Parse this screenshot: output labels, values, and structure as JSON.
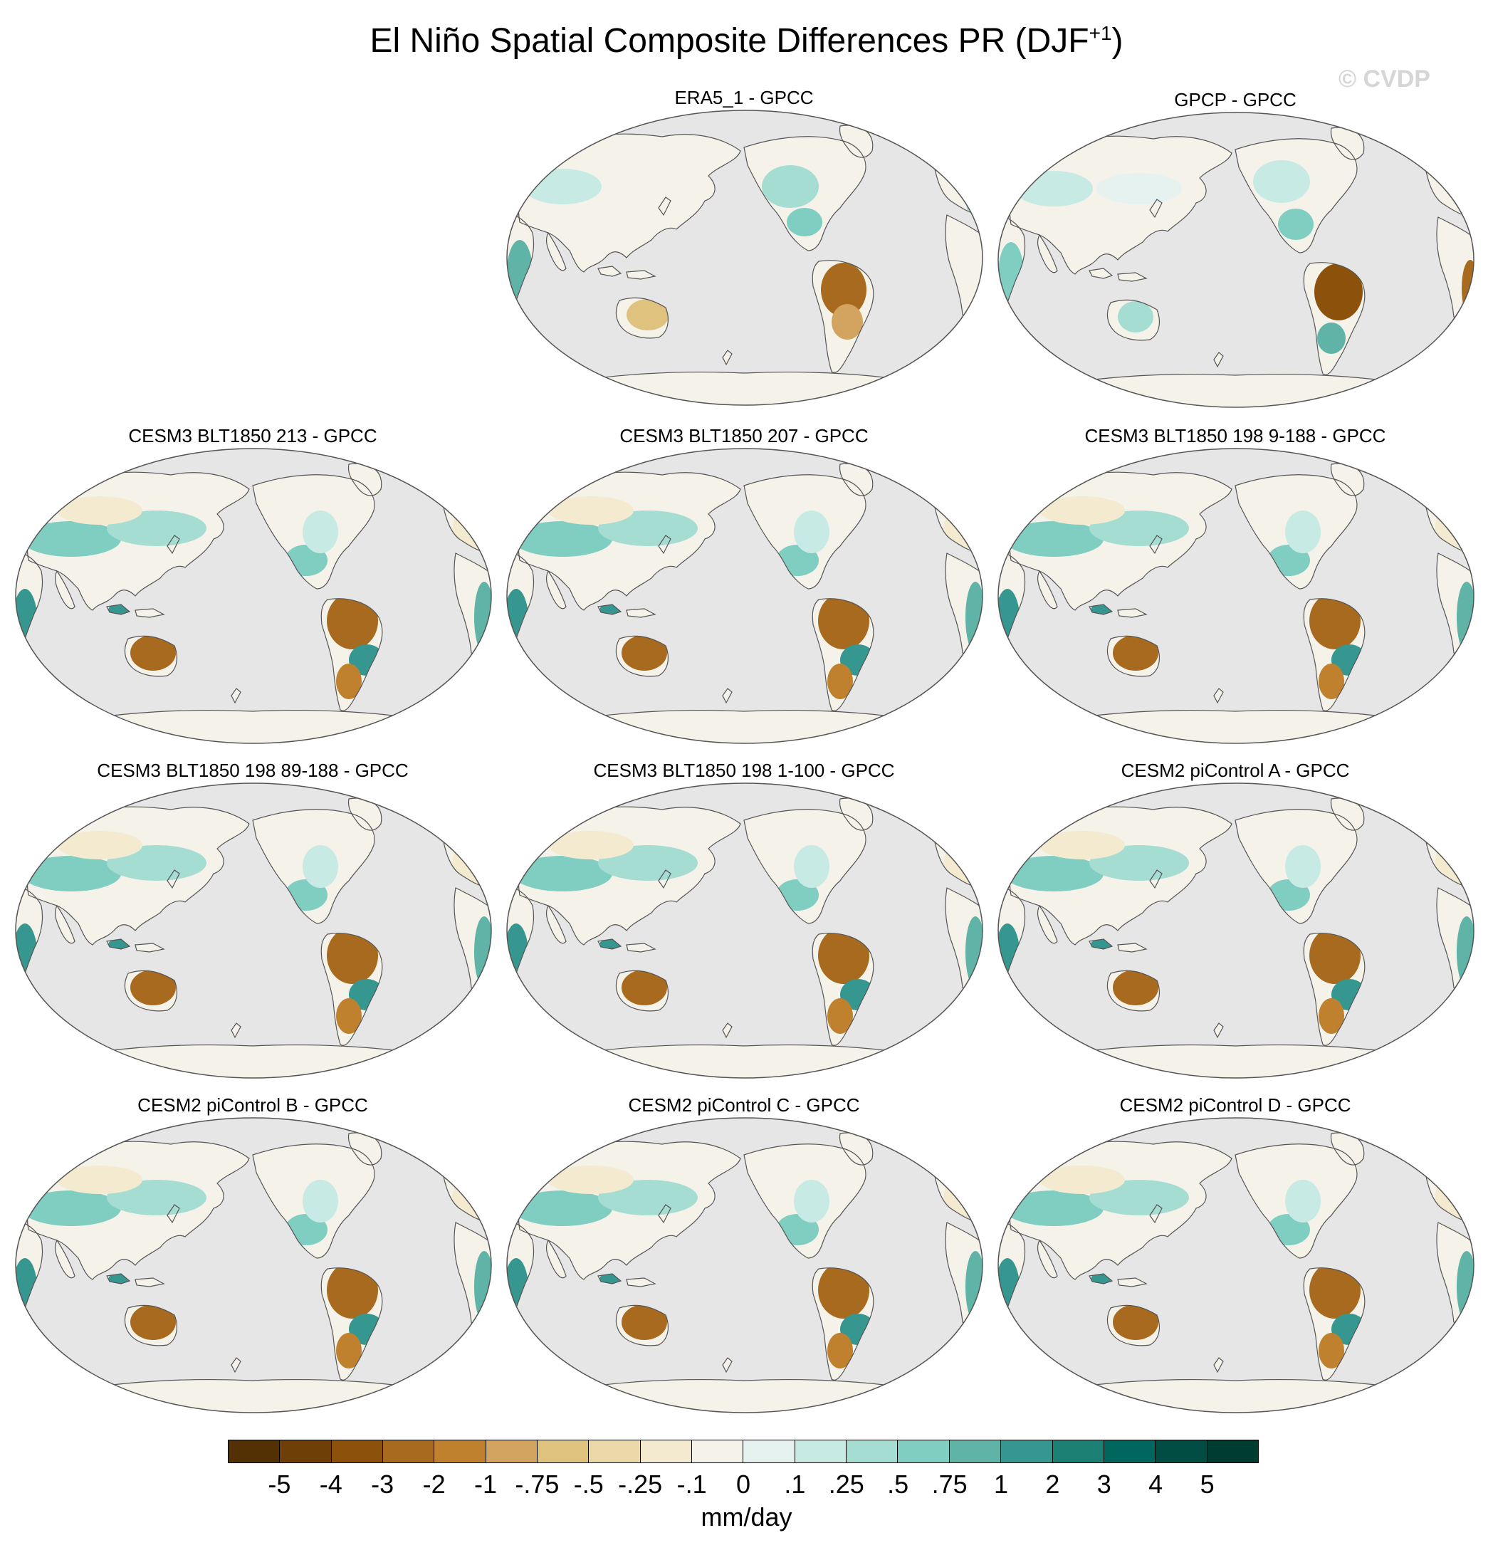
{
  "figure": {
    "title": "El Niño Spatial Composite Differences PR (DJF",
    "title_sup": "+1",
    "title_close": ")",
    "watermark": "© CVDP"
  },
  "panels": [
    {
      "title": "ERA5_1 - GPCC",
      "pattern": "obs1"
    },
    {
      "title": "GPCP - GPCC",
      "pattern": "obs2"
    },
    {
      "title": "CESM3 BLT1850 213 - GPCC",
      "pattern": "model"
    },
    {
      "title": "CESM3 BLT1850 207 - GPCC",
      "pattern": "model"
    },
    {
      "title": "CESM3 BLT1850 198 9-188 - GPCC",
      "pattern": "model"
    },
    {
      "title": "CESM3 BLT1850 198 89-188 - GPCC",
      "pattern": "model"
    },
    {
      "title": "CESM3 BLT1850 198 1-100 - GPCC",
      "pattern": "model"
    },
    {
      "title": "CESM2 piControl A - GPCC",
      "pattern": "model"
    },
    {
      "title": "CESM2 piControl B - GPCC",
      "pattern": "model"
    },
    {
      "title": "CESM2 piControl C - GPCC",
      "pattern": "model"
    },
    {
      "title": "CESM2 piControl D - GPCC",
      "pattern": "model"
    }
  ],
  "colorbar": {
    "units": "mm/day",
    "labels": [
      "-5",
      "-4",
      "-3",
      "-2",
      "-1",
      "-.75",
      "-.5",
      "-.25",
      "-.1",
      "0",
      ".1",
      ".25",
      ".5",
      ".75",
      "1",
      "2",
      "3",
      "4",
      "5"
    ],
    "colors": [
      "#543005",
      "#6f3f08",
      "#8c510a",
      "#a86a1e",
      "#bf812d",
      "#d3a45f",
      "#dfc27d",
      "#ecd9aa",
      "#f3ead0",
      "#f5f2ea",
      "#e6f2f0",
      "#c7eae5",
      "#a5ddd3",
      "#80cdc1",
      "#5fb4a7",
      "#35978f",
      "#1b7f73",
      "#01665e",
      "#014d43",
      "#003c30"
    ]
  },
  "map": {
    "ocean_color": "#e6e6e6",
    "coast_color": "#555555",
    "projection": "Robinson, Pacific-centered"
  }
}
